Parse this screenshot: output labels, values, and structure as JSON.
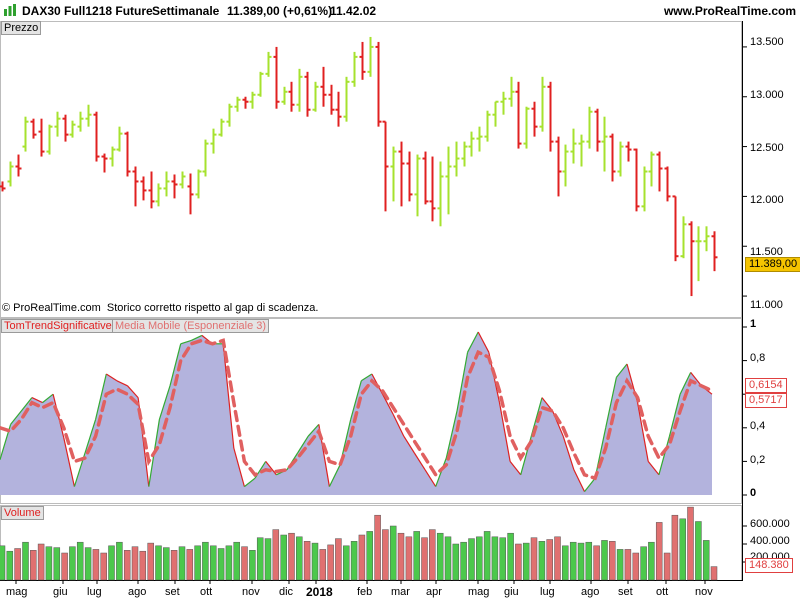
{
  "header": {
    "instrument": "DAX30 Full1218 Future",
    "timeframe": "Settimanale",
    "last_change": "11.389,00 (+0,61%)",
    "time": "11.42.02",
    "site": "www.ProRealTime.com"
  },
  "panels": {
    "price_label": "Prezzo",
    "indicator_label": "TomTrendSignificative",
    "indicator_ma_label": "Media Mobile (Esponenziale 3)",
    "volume_label": "Volume"
  },
  "copyright": "© ProRealTime.com  Storico corretto rispetto al gap di scadenza.",
  "price_axis": [
    "13.500",
    "13.000",
    "12.500",
    "12.000",
    "11.500",
    "11.000"
  ],
  "price_badge": "11.389,00",
  "indicator_axis": [
    "1",
    "0,8",
    "0,6",
    "0,4",
    "0,2",
    "0"
  ],
  "indicator_badges": [
    "0,6154",
    "0,5717"
  ],
  "volume_axis": [
    "600.000",
    "400.000",
    "200.000"
  ],
  "volume_badge": "148.380",
  "x_axis": [
    "mag",
    "giu",
    "lug",
    "ago",
    "set",
    "ott",
    "nov",
    "dic",
    "2018",
    "feb",
    "mar",
    "apr",
    "mag",
    "giu",
    "lug",
    "ago",
    "set",
    "ott",
    "nov"
  ],
  "colors": {
    "up": "#a6e22e",
    "down": "#e02020",
    "indicator_fill": "#b3b3dd",
    "ma_line": "#e06060",
    "vol_up": "#4cc84c",
    "vol_down": "#e07070"
  },
  "chart_data": [
    {
      "type": "ohlc",
      "series_name": "Prezzo",
      "ylim": [
        10800,
        13750
      ],
      "bars": [
        [
          12100,
          12150,
          12050,
          12080
        ],
        [
          12150,
          12350,
          12100,
          12300
        ],
        [
          12300,
          12420,
          12200,
          12280
        ],
        [
          12500,
          12800,
          12450,
          12750
        ],
        [
          12750,
          12780,
          12580,
          12620
        ],
        [
          12650,
          12780,
          12400,
          12450
        ],
        [
          12450,
          12720,
          12420,
          12700
        ],
        [
          12700,
          12850,
          12600,
          12780
        ],
        [
          12780,
          12820,
          12550,
          12620
        ],
        [
          12620,
          12760,
          12590,
          12720
        ],
        [
          12700,
          12850,
          12650,
          12780
        ],
        [
          12780,
          12920,
          12700,
          12820
        ],
        [
          12820,
          12850,
          12350,
          12400
        ],
        [
          12400,
          12430,
          12240,
          12380
        ],
        [
          12380,
          12500,
          12300,
          12470
        ],
        [
          12470,
          12700,
          12450,
          12630
        ],
        [
          12630,
          12650,
          12200,
          12250
        ],
        [
          12250,
          12300,
          11900,
          12150
        ],
        [
          12150,
          12200,
          11960,
          12060
        ],
        [
          12060,
          12250,
          11880,
          11950
        ],
        [
          11950,
          12130,
          11900,
          12080
        ],
        [
          12080,
          12250,
          12000,
          12150
        ],
        [
          12150,
          12220,
          11980,
          12120
        ],
        [
          12120,
          12250,
          12080,
          12200
        ],
        [
          12100,
          12230,
          11820,
          12020
        ],
        [
          12020,
          12270,
          11980,
          12250
        ],
        [
          12250,
          12570,
          12200,
          12530
        ],
        [
          12530,
          12680,
          12430,
          12620
        ],
        [
          12620,
          12780,
          12600,
          12750
        ],
        [
          12750,
          12930,
          12700,
          12900
        ],
        [
          12900,
          13000,
          12850,
          12970
        ],
        [
          12970,
          13000,
          12880,
          12950
        ],
        [
          12950,
          13050,
          12880,
          13020
        ],
        [
          13020,
          13250,
          13000,
          13230
        ],
        [
          13230,
          13450,
          13200,
          13400
        ],
        [
          13400,
          13500,
          12880,
          12950
        ],
        [
          12950,
          13100,
          12920,
          13050
        ],
        [
          13050,
          13150,
          12850,
          12920
        ],
        [
          12920,
          13280,
          12850,
          13200
        ],
        [
          13200,
          13250,
          12800,
          12870
        ],
        [
          12870,
          13150,
          12850,
          13100
        ],
        [
          13100,
          13300,
          12900,
          13020
        ],
        [
          13020,
          13120,
          12820,
          12870
        ],
        [
          12870,
          13050,
          12700,
          12800
        ],
        [
          12800,
          13200,
          12750,
          13150
        ],
        [
          13150,
          13450,
          13100,
          13400
        ],
        [
          13400,
          13550,
          13170,
          13250
        ],
        [
          13250,
          13600,
          13200,
          13500
        ],
        [
          13500,
          13550,
          12700,
          12750
        ],
        [
          12750,
          12750,
          11850,
          12300
        ],
        [
          12300,
          12500,
          11950,
          12450
        ],
        [
          12450,
          12550,
          11900,
          12330
        ],
        [
          12330,
          12450,
          11950,
          12020
        ],
        [
          12020,
          12420,
          11800,
          12380
        ],
        [
          12380,
          12450,
          11920,
          11950
        ],
        [
          11950,
          12400,
          11750,
          11880
        ],
        [
          11880,
          12350,
          11700,
          12200
        ],
        [
          12200,
          12500,
          11820,
          12300
        ],
        [
          12300,
          12550,
          12200,
          12380
        ],
        [
          12380,
          12550,
          12300,
          12500
        ],
        [
          12500,
          12650,
          12400,
          12580
        ],
        [
          12580,
          12700,
          12450,
          12600
        ],
        [
          12600,
          12860,
          12550,
          12820
        ],
        [
          12820,
          12950,
          12700,
          12950
        ],
        [
          12950,
          13050,
          12820,
          12980
        ],
        [
          12980,
          13200,
          12900,
          13050
        ],
        [
          13050,
          13150,
          12480,
          12530
        ],
        [
          12530,
          12900,
          12480,
          12880
        ],
        [
          12880,
          12950,
          12600,
          12700
        ],
        [
          12700,
          13200,
          12650,
          13100
        ],
        [
          13100,
          13150,
          12450,
          12550
        ],
        [
          12550,
          12600,
          12000,
          12250
        ],
        [
          12250,
          12520,
          12100,
          12450
        ],
        [
          12450,
          12680,
          12330,
          12530
        ],
        [
          12530,
          12620,
          12300,
          12550
        ],
        [
          12550,
          12900,
          12480,
          12850
        ],
        [
          12850,
          12880,
          12450,
          12550
        ],
        [
          12550,
          12800,
          12250,
          12600
        ],
        [
          12600,
          12630,
          12150,
          12250
        ],
        [
          12250,
          12550,
          12200,
          12500
        ],
        [
          12500,
          12550,
          12350,
          12470
        ],
        [
          12470,
          12480,
          11850,
          11900
        ],
        [
          11900,
          12300,
          11850,
          12250
        ],
        [
          12250,
          12450,
          12100,
          12420
        ],
        [
          12420,
          12450,
          12050,
          12280
        ],
        [
          12280,
          12300,
          11950,
          12000
        ],
        [
          12000,
          12000,
          11350,
          11400
        ],
        [
          11400,
          11800,
          11380,
          11720
        ],
        [
          11720,
          11750,
          11000,
          11550
        ],
        [
          11550,
          11700,
          11150,
          11550
        ],
        [
          11550,
          11700,
          11450,
          11600
        ],
        [
          11600,
          11650,
          11250,
          11389
        ]
      ]
    },
    {
      "type": "area",
      "series": [
        {
          "name": "TomTrendSignificative",
          "values": [
            0.21,
            0.42,
            0.5,
            0.58,
            0.55,
            0.6,
            0.34,
            0.05,
            0.25,
            0.45,
            0.72,
            0.68,
            0.65,
            0.58,
            0.05,
            0.45,
            0.65,
            0.9,
            0.92,
            0.95,
            0.9,
            0.9,
            0.28,
            0.05,
            0.1,
            0.2,
            0.12,
            0.15,
            0.25,
            0.35,
            0.42,
            0.05,
            0.18,
            0.45,
            0.68,
            0.72,
            0.6,
            0.48,
            0.35,
            0.25,
            0.15,
            0.05,
            0.22,
            0.5,
            0.85,
            0.97,
            0.85,
            0.55,
            0.2,
            0.12,
            0.35,
            0.58,
            0.5,
            0.35,
            0.15,
            0.02,
            0.1,
            0.4,
            0.7,
            0.78,
            0.55,
            0.2,
            0.12,
            0.35,
            0.6,
            0.73,
            0.65,
            0.6
          ]
        },
        {
          "name": "Media Mobile (Esponenziale 3)",
          "values": [
            0.4,
            0.38,
            0.45,
            0.55,
            0.52,
            0.55,
            0.4,
            0.2,
            0.22,
            0.35,
            0.6,
            0.63,
            0.6,
            0.54,
            0.2,
            0.3,
            0.52,
            0.8,
            0.9,
            0.92,
            0.9,
            0.92,
            0.55,
            0.2,
            0.12,
            0.15,
            0.14,
            0.15,
            0.22,
            0.3,
            0.38,
            0.2,
            0.18,
            0.35,
            0.6,
            0.68,
            0.62,
            0.52,
            0.42,
            0.32,
            0.22,
            0.12,
            0.18,
            0.38,
            0.7,
            0.85,
            0.82,
            0.62,
            0.35,
            0.22,
            0.32,
            0.52,
            0.5,
            0.4,
            0.25,
            0.12,
            0.1,
            0.28,
            0.55,
            0.68,
            0.58,
            0.35,
            0.22,
            0.3,
            0.5,
            0.68,
            0.65,
            0.62
          ]
        }
      ],
      "ylim": [
        0,
        1
      ]
    },
    {
      "type": "bar",
      "series_name": "Volume",
      "ylim": [
        0,
        800000
      ],
      "values": [
        380000,
        320000,
        350000,
        420000,
        330000,
        400000,
        370000,
        360000,
        300000,
        370000,
        420000,
        360000,
        340000,
        300000,
        380000,
        420000,
        330000,
        370000,
        320000,
        410000,
        380000,
        360000,
        330000,
        370000,
        340000,
        380000,
        420000,
        380000,
        350000,
        380000,
        420000,
        370000,
        330000,
        470000,
        460000,
        560000,
        500000,
        520000,
        480000,
        430000,
        410000,
        340000,
        390000,
        460000,
        380000,
        430000,
        500000,
        540000,
        720000,
        560000,
        600000,
        520000,
        480000,
        540000,
        470000,
        560000,
        520000,
        480000,
        400000,
        420000,
        460000,
        480000,
        540000,
        480000,
        470000,
        520000,
        400000,
        410000,
        470000,
        430000,
        450000,
        480000,
        380000,
        420000,
        410000,
        420000,
        380000,
        440000,
        430000,
        340000,
        340000,
        300000,
        370000,
        420000,
        640000,
        300000,
        720000,
        680000,
        810000,
        650000,
        440000,
        148380
      ],
      "up": [
        1,
        1,
        0,
        1,
        0,
        0,
        1,
        1,
        0,
        1,
        1,
        1,
        0,
        0,
        1,
        1,
        0,
        0,
        0,
        0,
        1,
        1,
        0,
        1,
        0,
        1,
        1,
        1,
        1,
        1,
        1,
        0,
        1,
        1,
        1,
        0,
        1,
        0,
        1,
        0,
        1,
        0,
        0,
        0,
        1,
        1,
        0,
        1,
        0,
        0,
        1,
        0,
        0,
        1,
        0,
        0,
        1,
        1,
        1,
        1,
        1,
        1,
        1,
        1,
        1,
        1,
        0,
        1,
        0,
        1,
        0,
        0,
        1,
        1,
        1,
        1,
        0,
        1,
        0,
        1,
        0,
        0,
        1,
        1,
        0,
        0,
        0,
        1,
        0,
        1,
        1,
        0
      ]
    }
  ]
}
